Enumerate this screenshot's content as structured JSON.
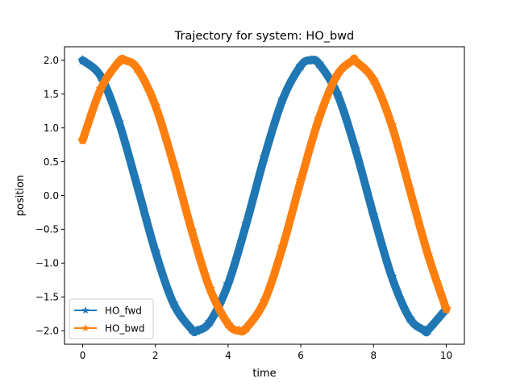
{
  "chart_data": {
    "type": "line",
    "title": "Trajectory for system: HO_bwd",
    "xlabel": "time",
    "ylabel": "position",
    "xlim": [
      -0.5,
      10.5
    ],
    "ylim": [
      -2.2,
      2.2
    ],
    "x_ticks": [
      0,
      2,
      4,
      6,
      8,
      10
    ],
    "x_tick_labels": [
      "0",
      "2",
      "4",
      "6",
      "8",
      "10"
    ],
    "y_ticks": [
      -2.0,
      -1.5,
      -1.0,
      -0.5,
      0.0,
      0.5,
      1.0,
      1.5,
      2.0
    ],
    "y_tick_labels": [
      "−2.0",
      "−1.5",
      "−1.0",
      "−0.5",
      "0.0",
      "0.5",
      "1.0",
      "1.5",
      "2.0"
    ],
    "grid": false,
    "legend_position": "lower-left",
    "marker": "star",
    "series": [
      {
        "name": "HO_fwd",
        "color": "#1f77b4",
        "x": [
          0,
          0.5,
          1.0,
          1.5,
          2.0,
          2.5,
          3.0,
          3.14,
          3.5,
          4.0,
          4.5,
          5.0,
          5.5,
          6.0,
          6.28,
          6.5,
          7.0,
          7.5,
          8.0,
          8.5,
          9.0,
          9.42,
          9.5,
          10.0
        ],
        "y": [
          2.0,
          1.76,
          1.08,
          0.14,
          -0.83,
          -1.6,
          -1.98,
          -2.0,
          -1.87,
          -1.31,
          -0.42,
          0.57,
          1.42,
          1.92,
          2.0,
          1.95,
          1.51,
          0.69,
          -0.29,
          -1.2,
          -1.82,
          -2.0,
          -1.99,
          -1.68
        ]
      },
      {
        "name": "HO_bwd",
        "color": "#ff7f0e",
        "x": [
          0,
          0.5,
          1.0,
          1.16,
          1.5,
          2.0,
          2.5,
          3.0,
          3.5,
          4.0,
          4.3,
          4.5,
          5.0,
          5.5,
          6.0,
          6.5,
          7.0,
          7.44,
          7.5,
          8.0,
          8.5,
          9.0,
          9.5,
          10.0
        ],
        "y": [
          0.82,
          1.58,
          1.98,
          2.0,
          1.88,
          1.33,
          0.46,
          -0.52,
          -1.38,
          -1.9,
          -2.0,
          -1.96,
          -1.56,
          -0.76,
          0.22,
          1.14,
          1.78,
          2.0,
          1.99,
          1.71,
          1.04,
          0.08,
          -0.88,
          -1.68
        ]
      }
    ]
  }
}
